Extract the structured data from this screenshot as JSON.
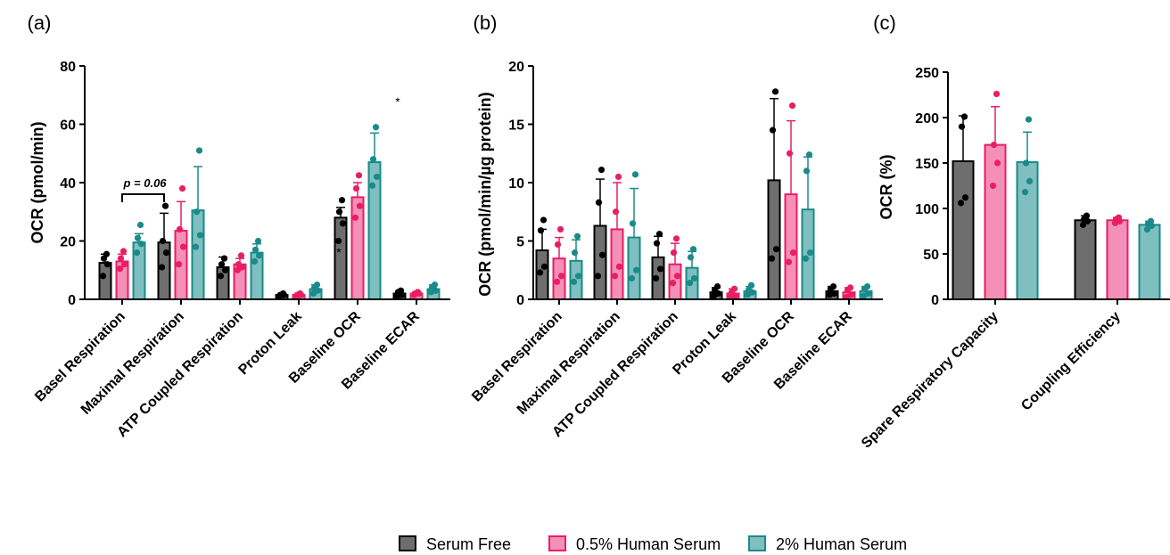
{
  "colors": {
    "serum_free_fill": "#6e6e6e",
    "serum_free_dot": "#000000",
    "half_serum_fill": "#f48fb8",
    "half_serum_dot": "#e91e63",
    "two_serum_fill": "#7fbfbf",
    "two_serum_dot": "#1a8a8a"
  },
  "legend": {
    "items": [
      "Serum Free",
      "0.5% Human Serum",
      "2% Human Serum"
    ]
  },
  "chart_data": [
    {
      "panel": "(a)",
      "type": "bar",
      "ylabel": "OCR (pmol/min)",
      "ylim": [
        0,
        80
      ],
      "yticks": [
        "0",
        "20",
        "40",
        "60",
        "80"
      ],
      "categories": [
        "Basel Respiration",
        "Maximal Respiration",
        "ATP Coupled Respiration",
        "Proton Leak",
        "Baseline OCR",
        "Baseline ECAR"
      ],
      "series": [
        {
          "name": "Serum Free",
          "values": [
            12.5,
            19.5,
            11,
            1.5,
            28,
            2
          ],
          "errors": [
            3,
            10,
            3.5,
            0.5,
            3.5,
            0.8
          ],
          "points": [
            [
              8,
              12,
              14,
              15.5
            ],
            [
              11,
              16,
              20,
              32
            ],
            [
              8,
              10,
              12,
              14
            ],
            [
              1,
              1.5,
              1.5,
              2
            ],
            [
              20,
              26,
              30,
              34
            ],
            [
              1,
              1.5,
              2.5,
              3
            ]
          ]
        },
        {
          "name": "0.5% Human Serum",
          "values": [
            13,
            23.5,
            12,
            1.5,
            35,
            2
          ],
          "errors": [
            2.5,
            10,
            2,
            0.5,
            5,
            0.5
          ],
          "points": [
            [
              10.5,
              12,
              14,
              16.5
            ],
            [
              12,
              18,
              24,
              38
            ],
            [
              10,
              11,
              12,
              15
            ],
            [
              1,
              1.5,
              1.5,
              2
            ],
            [
              28,
              32,
              38,
              42.5
            ],
            [
              1.5,
              2,
              2,
              2.5
            ]
          ]
        },
        {
          "name": "2% Human Serum",
          "values": [
            19.5,
            30.5,
            16,
            3.5,
            47,
            3.5
          ],
          "errors": [
            3,
            15,
            3,
            1.5,
            10,
            1.5
          ],
          "points": [
            [
              16,
              19,
              21,
              25.5
            ],
            [
              18,
              22,
              30,
              51
            ],
            [
              13,
              15,
              17,
              20
            ],
            [
              2,
              3,
              4,
              5
            ],
            [
              39,
              42,
              48,
              59
            ],
            [
              2.5,
              3,
              4,
              5
            ]
          ]
        }
      ],
      "annotation": {
        "text": "p = 0.06",
        "from_category": 0,
        "to_category": 1
      },
      "marks": [
        "*",
        "*"
      ]
    },
    {
      "panel": "(b)",
      "type": "bar",
      "ylabel": "OCR (pmol/min/µg protein)",
      "ylim": [
        0,
        20
      ],
      "yticks": [
        "0",
        "5",
        "10",
        "15",
        "20"
      ],
      "categories": [
        "Basel Respiration",
        "Maximal Respiration",
        "ATP Coupled Respiration",
        "Proton Leak",
        "Baseline OCR",
        "Baseline ECAR"
      ],
      "series": [
        {
          "name": "Serum Free",
          "values": [
            4.2,
            6.3,
            3.6,
            0.6,
            10.2,
            0.7
          ],
          "errors": [
            1.8,
            4,
            1.8,
            0.4,
            7,
            0.4
          ],
          "points": [
            [
              2.3,
              2.8,
              5.9,
              6.8
            ],
            [
              2.0,
              3.8,
              8.3,
              11.1
            ],
            [
              1.8,
              2.6,
              4.8,
              5.6
            ],
            [
              0.3,
              0.5,
              0.8,
              1.1
            ],
            [
              3.5,
              4.3,
              14.5,
              17.8
            ],
            [
              0.4,
              0.5,
              0.9,
              1.1
            ]
          ]
        },
        {
          "name": "0.5% Human Serum",
          "values": [
            3.5,
            6.0,
            3.0,
            0.5,
            9.0,
            0.6
          ],
          "errors": [
            1.8,
            4,
            1.8,
            0.4,
            6.3,
            0.4
          ],
          "points": [
            [
              1.5,
              2.0,
              4.7,
              6.0
            ],
            [
              2.0,
              2.8,
              7.5,
              10.5
            ],
            [
              1.4,
              2.0,
              4.0,
              5.2
            ],
            [
              0.2,
              0.3,
              0.6,
              0.9
            ],
            [
              3.2,
              4.0,
              12.5,
              16.6
            ],
            [
              0.2,
              0.4,
              0.8,
              1.0
            ]
          ]
        },
        {
          "name": "2% Human Serum",
          "values": [
            3.3,
            5.3,
            2.7,
            0.7,
            7.7,
            0.7
          ],
          "errors": [
            1.8,
            4.2,
            1.4,
            0.4,
            4.5,
            0.4
          ],
          "points": [
            [
              1.5,
              2.0,
              4.0,
              5.4
            ],
            [
              1.8,
              2.5,
              6.5,
              10.7
            ],
            [
              1.4,
              1.8,
              3.6,
              4.3
            ],
            [
              0.4,
              0.6,
              0.8,
              1.2
            ],
            [
              3.5,
              4.0,
              11.0,
              12.4
            ],
            [
              0.3,
              0.5,
              0.9,
              1.1
            ]
          ]
        }
      ]
    },
    {
      "panel": "(c)",
      "type": "bar",
      "ylabel": "OCR (%)",
      "ylim": [
        0,
        250
      ],
      "yticks": [
        "0",
        "50",
        "100",
        "150",
        "200",
        "250"
      ],
      "categories": [
        "Spare Respiratory Capacity",
        "Coupling Efficiency"
      ],
      "series": [
        {
          "name": "Serum Free",
          "values": [
            152,
            87
          ],
          "errors": [
            50,
            5
          ],
          "points": [
            [
              106,
              112,
              190,
              201
            ],
            [
              82,
              86,
              88,
              92
            ]
          ]
        },
        {
          "name": "0.5% Human Serum",
          "values": [
            170,
            87
          ],
          "errors": [
            42,
            3
          ],
          "points": [
            [
              125,
              150,
              170,
              226
            ],
            [
              84,
              86,
              88,
              90
            ]
          ]
        },
        {
          "name": "2% Human Serum",
          "values": [
            151,
            82
          ],
          "errors": [
            33,
            4
          ],
          "points": [
            [
              118,
              130,
              150,
              198
            ],
            [
              77,
              81,
              83,
              86
            ]
          ]
        }
      ]
    }
  ]
}
